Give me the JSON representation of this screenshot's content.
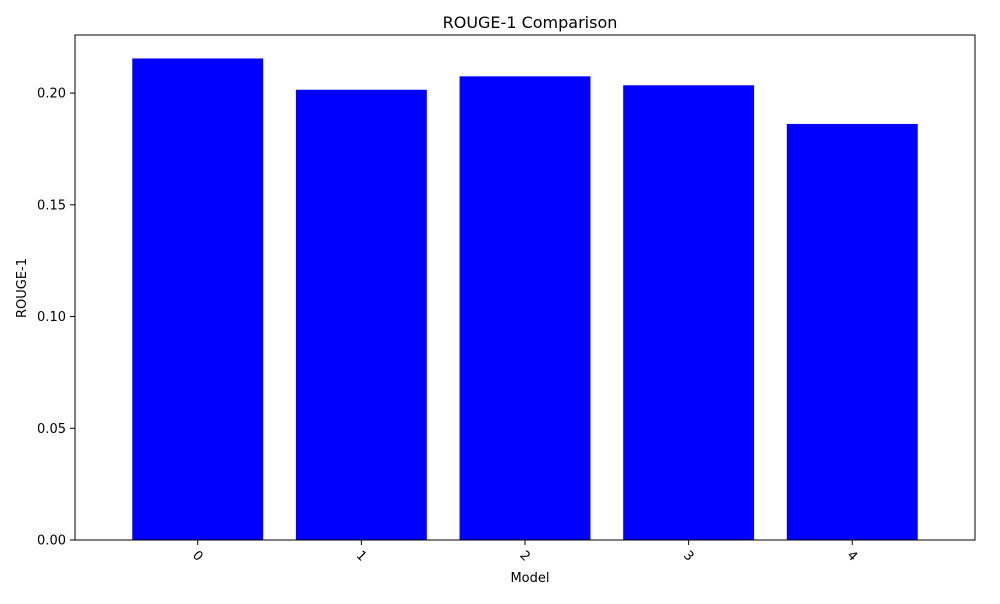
{
  "chart_data": {
    "type": "bar",
    "title": "ROUGE-1 Comparison",
    "xlabel": "Model",
    "ylabel": "ROUGE-1",
    "categories": [
      "0",
      "1",
      "2",
      "3",
      "4"
    ],
    "values": [
      0.2155,
      0.2015,
      0.2075,
      0.2035,
      0.1862
    ],
    "ylim": [
      0,
      0.226
    ],
    "yticks": [
      0.0,
      0.05,
      0.1,
      0.15,
      0.2
    ],
    "ytick_labels": [
      "0.00",
      "0.05",
      "0.10",
      "0.15",
      "0.20"
    ],
    "xtick_rotation_deg": 45,
    "grid": false,
    "legend": "none",
    "bar_color": "#0000ff"
  }
}
